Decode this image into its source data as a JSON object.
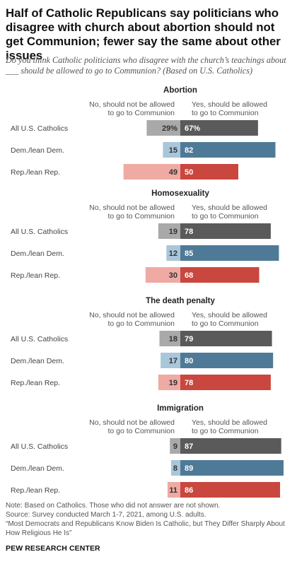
{
  "title": "Half of Catholic Republicans say politicians who disagree with church about abortion should not get Communion; fewer say the same about other issues",
  "subtitle": "Do you think Catholic politicians who disagree with the church’s teachings about ___ should be allowed to go to Communion? (Based on U.S. Catholics)",
  "legend": {
    "no_line1": "No, should not be allowed",
    "no_line2": "to go to Communion",
    "yes_line1": "Yes, should be allowed",
    "yes_line2": "to go to Communion"
  },
  "chart_data": [
    {
      "type": "bar",
      "title": "Abortion",
      "categories": [
        "All U.S. Catholics",
        "Dem./lean Dem.",
        "Rep./lean Rep."
      ],
      "series": [
        {
          "name": "No, should not be allowed to go to Communion",
          "values": [
            29,
            15,
            49
          ]
        },
        {
          "name": "Yes, should be allowed to go to Communion",
          "values": [
            67,
            82,
            50
          ]
        }
      ],
      "value_labels": {
        "no": [
          "29%",
          "15",
          "49"
        ],
        "yes": [
          "67%",
          "82",
          "50"
        ]
      }
    },
    {
      "type": "bar",
      "title": "Homosexuality",
      "categories": [
        "All U.S. Catholics",
        "Dem./lean Dem.",
        "Rep./lean Rep."
      ],
      "series": [
        {
          "name": "No, should not be allowed to go to Communion",
          "values": [
            19,
            12,
            30
          ]
        },
        {
          "name": "Yes, should be allowed to go to Communion",
          "values": [
            78,
            85,
            68
          ]
        }
      ],
      "value_labels": {
        "no": [
          "19",
          "12",
          "30"
        ],
        "yes": [
          "78",
          "85",
          "68"
        ]
      }
    },
    {
      "type": "bar",
      "title": "The death penalty",
      "categories": [
        "All U.S. Catholics",
        "Dem./lean Dem.",
        "Rep./lean Rep."
      ],
      "series": [
        {
          "name": "No, should not be allowed to go to Communion",
          "values": [
            18,
            17,
            19
          ]
        },
        {
          "name": "Yes, should be allowed to go to Communion",
          "values": [
            79,
            80,
            78
          ]
        }
      ],
      "value_labels": {
        "no": [
          "18",
          "17",
          "19"
        ],
        "yes": [
          "79",
          "80",
          "78"
        ]
      }
    },
    {
      "type": "bar",
      "title": "Immigration",
      "categories": [
        "All U.S. Catholics",
        "Dem./lean Dem.",
        "Rep./lean Rep."
      ],
      "series": [
        {
          "name": "No, should not be allowed to go to Communion",
          "values": [
            9,
            8,
            11
          ]
        },
        {
          "name": "Yes, should be allowed to go to Communion",
          "values": [
            87,
            89,
            86
          ]
        }
      ],
      "value_labels": {
        "no": [
          "9",
          "8",
          "11"
        ],
        "yes": [
          "87",
          "89",
          "86"
        ]
      }
    }
  ],
  "colors": {
    "no": [
      "#a9a9a9",
      "#a9c6da",
      "#eeaaa3"
    ],
    "yes": [
      "#5a5a5a",
      "#4f7a97",
      "#c9473e"
    ]
  },
  "notes": {
    "note": "Note: Based on Catholics. Those who did not answer are not shown.",
    "source": "Source: Survey conducted March 1-7, 2021, among U.S. adults.",
    "report": "“Most Democrats and Republicans Know Biden Is Catholic, but They Differ Sharply About How Religious He Is”"
  },
  "credit": "PEW RESEARCH CENTER"
}
